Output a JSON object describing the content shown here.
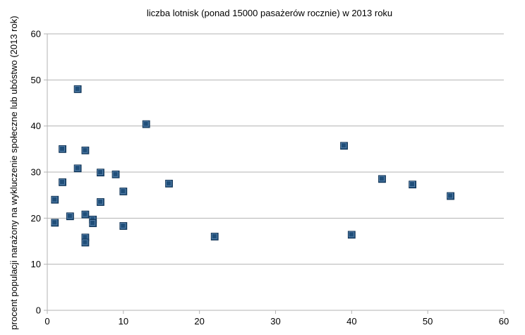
{
  "chart_data": {
    "type": "scatter",
    "title": "liczba lotnisk  (ponad 15000 pasażerów rocznie) w 2013 roku",
    "xlabel": "",
    "ylabel": "procent populacji narażony na wykluczenie społeczne lub ubóstwo (2013 rok)",
    "xlim": [
      0,
      60
    ],
    "ylim": [
      0,
      60
    ],
    "xticks": [
      0,
      10,
      20,
      30,
      40,
      50,
      60
    ],
    "yticks": [
      0,
      10,
      20,
      30,
      40,
      50,
      60
    ],
    "grid": "horizontal",
    "marker": "square",
    "marker_color": "#1f4e79",
    "series": [
      {
        "points": [
          [
            1,
            24.0
          ],
          [
            1,
            19.0
          ],
          [
            2,
            35.0
          ],
          [
            2,
            27.8
          ],
          [
            3,
            20.4
          ],
          [
            4,
            48.0
          ],
          [
            4,
            30.8
          ],
          [
            5,
            34.7
          ],
          [
            5,
            20.8
          ],
          [
            5,
            15.8
          ],
          [
            5,
            14.7
          ],
          [
            6,
            19.7
          ],
          [
            6,
            18.9
          ],
          [
            7,
            29.9
          ],
          [
            7,
            23.5
          ],
          [
            9,
            29.5
          ],
          [
            10,
            25.8
          ],
          [
            10,
            18.3
          ],
          [
            13,
            40.4
          ],
          [
            16,
            27.5
          ],
          [
            22,
            16.0
          ],
          [
            39,
            35.7
          ],
          [
            40,
            16.4
          ],
          [
            44,
            28.5
          ],
          [
            48,
            27.3
          ],
          [
            53,
            24.8
          ]
        ]
      }
    ]
  }
}
